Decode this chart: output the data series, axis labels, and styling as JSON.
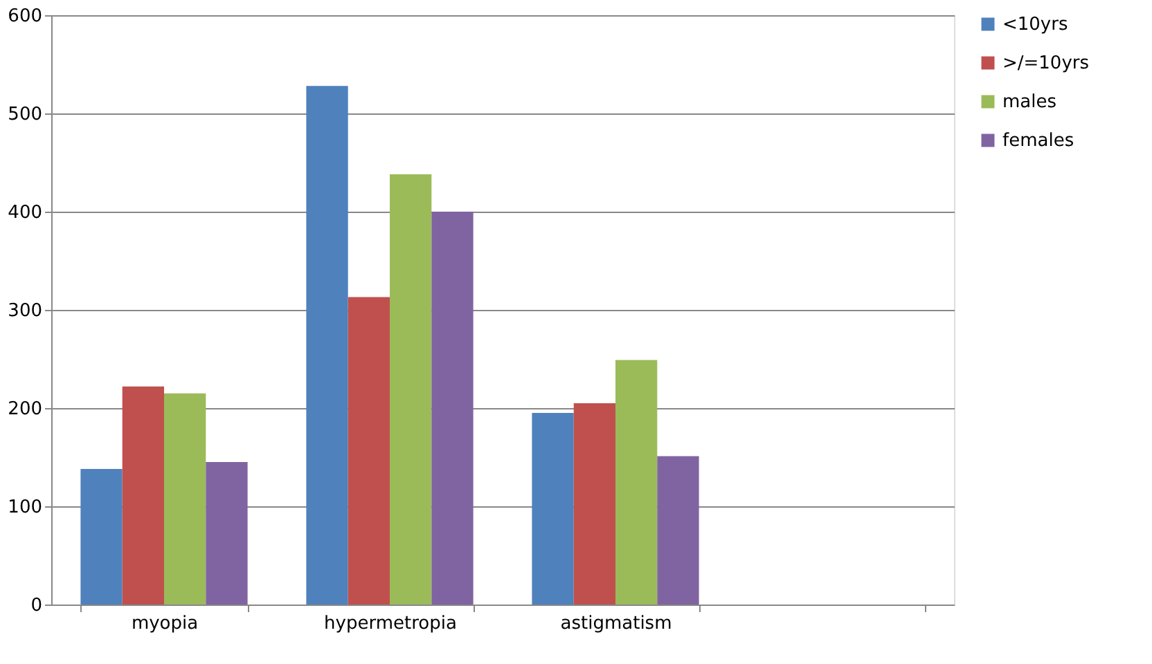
{
  "chart_data": {
    "type": "bar",
    "categories": [
      "myopia",
      "hypermetropia",
      "astigmatism",
      null
    ],
    "series": [
      {
        "name": "<10yrs",
        "color": "#4f81bd",
        "values": [
          138,
          528,
          195,
          null
        ]
      },
      {
        "name": ">/=10yrs",
        "color": "#c0504d",
        "values": [
          222,
          313,
          205,
          null
        ]
      },
      {
        "name": "males",
        "color": "#9bbb59",
        "values": [
          215,
          438,
          249,
          null
        ]
      },
      {
        "name": "females",
        "color": "#8064a2",
        "values": [
          145,
          400,
          151,
          null
        ]
      }
    ],
    "ylim": [
      0,
      600
    ],
    "yticks": [
      0,
      100,
      200,
      300,
      400,
      500,
      600
    ],
    "grid": "y",
    "legend": "right"
  }
}
